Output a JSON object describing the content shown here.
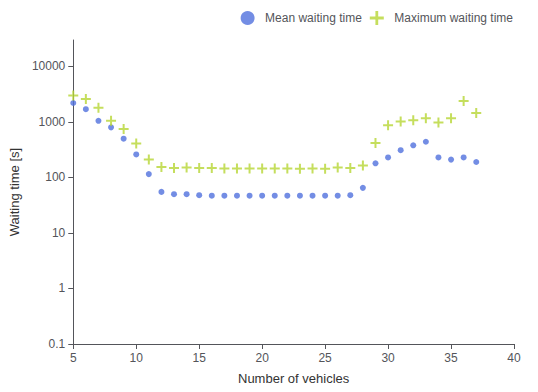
{
  "chart_data": {
    "type": "scatter",
    "x": [
      5,
      6,
      7,
      8,
      9,
      10,
      11,
      12,
      13,
      14,
      15,
      16,
      17,
      18,
      19,
      20,
      21,
      22,
      23,
      24,
      25,
      26,
      27,
      28,
      29,
      30,
      31,
      32,
      33,
      34,
      35,
      36,
      37
    ],
    "series": [
      {
        "name": "Mean waiting time",
        "marker": "circle",
        "values": [
          2200,
          1700,
          1050,
          800,
          500,
          260,
          115,
          55,
          50,
          50,
          48,
          47,
          47,
          47,
          47,
          47,
          47,
          47,
          47,
          47,
          47,
          47,
          48,
          65,
          180,
          230,
          310,
          380,
          440,
          230,
          210,
          230,
          190
        ]
      },
      {
        "name": "Maximum waiting time",
        "marker": "plus",
        "values": [
          3000,
          2600,
          1800,
          1050,
          750,
          410,
          210,
          155,
          148,
          152,
          148,
          148,
          145,
          145,
          145,
          145,
          145,
          145,
          143,
          145,
          143,
          152,
          148,
          165,
          420,
          870,
          1020,
          1080,
          1170,
          980,
          1170,
          2400,
          1450
        ]
      }
    ],
    "xlabel": "Number of vehicles",
    "ylabel": "Waiting time [s]",
    "xlim": [
      5,
      40
    ],
    "xticks": [
      5,
      10,
      15,
      20,
      25,
      30,
      35,
      40
    ],
    "ylim": [
      0.1,
      30000
    ],
    "yticks": [
      0.1,
      1,
      10,
      100,
      1000,
      10000
    ],
    "log": "y",
    "grid": false,
    "legend": "upper right"
  }
}
